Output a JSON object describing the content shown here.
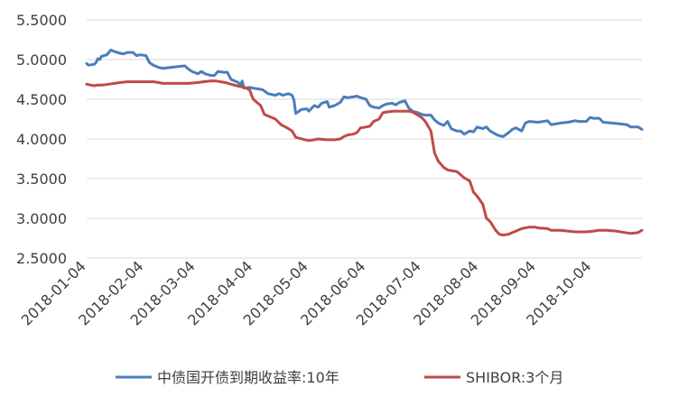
{
  "chart_data": {
    "type": "line",
    "title": "",
    "xlabel": "",
    "ylabel": "",
    "ylim": [
      2.5,
      5.5
    ],
    "ytick_labels": [
      "2.5000",
      "3.0000",
      "3.5000",
      "4.0000",
      "4.5000",
      "5.0000",
      "5.5000"
    ],
    "yticks": [
      2.5,
      3.0,
      3.5,
      4.0,
      4.5,
      5.0,
      5.5
    ],
    "xlim": [
      "2018-01-04",
      "2018-10-31"
    ],
    "x_ticks": [
      "2018-01-04",
      "2018-02-04",
      "2018-03-04",
      "2018-04-04",
      "2018-05-04",
      "2018-06-04",
      "2018-07-04",
      "2018-08-04",
      "2018-09-04",
      "2018-10-04"
    ],
    "grid": "horizontal",
    "legend_position": "bottom",
    "series": [
      {
        "name": "中债国开债到期收益率:10年",
        "color": "#4a7ebb",
        "points": [
          [
            "2018-01-04",
            4.95
          ],
          [
            "2018-01-05",
            4.93
          ],
          [
            "2018-01-08",
            4.94
          ],
          [
            "2018-01-09",
            4.96
          ],
          [
            "2018-01-10",
            5.01
          ],
          [
            "2018-01-11",
            5.0
          ],
          [
            "2018-01-12",
            5.04
          ],
          [
            "2018-01-15",
            5.06
          ],
          [
            "2018-01-17",
            5.12
          ],
          [
            "2018-01-19",
            5.1
          ],
          [
            "2018-01-22",
            5.08
          ],
          [
            "2018-01-24",
            5.07
          ],
          [
            "2018-01-26",
            5.09
          ],
          [
            "2018-01-29",
            5.09
          ],
          [
            "2018-01-31",
            5.05
          ],
          [
            "2018-02-02",
            5.06
          ],
          [
            "2018-02-05",
            5.05
          ],
          [
            "2018-02-07",
            4.96
          ],
          [
            "2018-02-09",
            4.93
          ],
          [
            "2018-02-12",
            4.9
          ],
          [
            "2018-02-14",
            4.89
          ],
          [
            "2018-02-22",
            4.91
          ],
          [
            "2018-02-26",
            4.92
          ],
          [
            "2018-02-28",
            4.88
          ],
          [
            "2018-03-02",
            4.85
          ],
          [
            "2018-03-05",
            4.82
          ],
          [
            "2018-03-07",
            4.85
          ],
          [
            "2018-03-09",
            4.82
          ],
          [
            "2018-03-12",
            4.8
          ],
          [
            "2018-03-14",
            4.8
          ],
          [
            "2018-03-16",
            4.85
          ],
          [
            "2018-03-19",
            4.84
          ],
          [
            "2018-03-21",
            4.84
          ],
          [
            "2018-03-23",
            4.75
          ],
          [
            "2018-03-26",
            4.72
          ],
          [
            "2018-03-27",
            4.71
          ],
          [
            "2018-03-28",
            4.66
          ],
          [
            "2018-03-29",
            4.73
          ],
          [
            "2018-03-30",
            4.64
          ],
          [
            "2018-04-02",
            4.65
          ],
          [
            "2018-04-04",
            4.64
          ],
          [
            "2018-04-09",
            4.62
          ],
          [
            "2018-04-12",
            4.57
          ],
          [
            "2018-04-16",
            4.55
          ],
          [
            "2018-04-18",
            4.57
          ],
          [
            "2018-04-20",
            4.55
          ],
          [
            "2018-04-23",
            4.57
          ],
          [
            "2018-04-25",
            4.55
          ],
          [
            "2018-04-26",
            4.49
          ],
          [
            "2018-04-27",
            4.32
          ],
          [
            "2018-04-30",
            4.37
          ],
          [
            "2018-05-03",
            4.38
          ],
          [
            "2018-05-04",
            4.35
          ],
          [
            "2018-05-07",
            4.42
          ],
          [
            "2018-05-09",
            4.4
          ],
          [
            "2018-05-11",
            4.45
          ],
          [
            "2018-05-14",
            4.47
          ],
          [
            "2018-05-15",
            4.4
          ],
          [
            "2018-05-18",
            4.42
          ],
          [
            "2018-05-21",
            4.46
          ],
          [
            "2018-05-23",
            4.53
          ],
          [
            "2018-05-25",
            4.52
          ],
          [
            "2018-05-28",
            4.53
          ],
          [
            "2018-05-30",
            4.54
          ],
          [
            "2018-06-01",
            4.52
          ],
          [
            "2018-06-04",
            4.5
          ],
          [
            "2018-06-06",
            4.42
          ],
          [
            "2018-06-08",
            4.4
          ],
          [
            "2018-06-11",
            4.39
          ],
          [
            "2018-06-13",
            4.42
          ],
          [
            "2018-06-15",
            4.44
          ],
          [
            "2018-06-18",
            4.45
          ],
          [
            "2018-06-20",
            4.43
          ],
          [
            "2018-06-22",
            4.46
          ],
          [
            "2018-06-25",
            4.48
          ],
          [
            "2018-06-27",
            4.39
          ],
          [
            "2018-06-29",
            4.35
          ],
          [
            "2018-07-02",
            4.33
          ],
          [
            "2018-07-04",
            4.31
          ],
          [
            "2018-07-06",
            4.3
          ],
          [
            "2018-07-09",
            4.3
          ],
          [
            "2018-07-11",
            4.24
          ],
          [
            "2018-07-13",
            4.2
          ],
          [
            "2018-07-16",
            4.17
          ],
          [
            "2018-07-18",
            4.22
          ],
          [
            "2018-07-20",
            4.13
          ],
          [
            "2018-07-23",
            4.1
          ],
          [
            "2018-07-25",
            4.1
          ],
          [
            "2018-07-27",
            4.06
          ],
          [
            "2018-07-30",
            4.1
          ],
          [
            "2018-08-01",
            4.09
          ],
          [
            "2018-08-03",
            4.15
          ],
          [
            "2018-08-06",
            4.13
          ],
          [
            "2018-08-08",
            4.15
          ],
          [
            "2018-08-10",
            4.1
          ],
          [
            "2018-08-13",
            4.06
          ],
          [
            "2018-08-15",
            4.04
          ],
          [
            "2018-08-17",
            4.03
          ],
          [
            "2018-08-20",
            4.08
          ],
          [
            "2018-08-22",
            4.12
          ],
          [
            "2018-08-24",
            4.14
          ],
          [
            "2018-08-27",
            4.1
          ],
          [
            "2018-08-29",
            4.2
          ],
          [
            "2018-08-31",
            4.22
          ],
          [
            "2018-09-05",
            4.21
          ],
          [
            "2018-09-10",
            4.23
          ],
          [
            "2018-09-12",
            4.18
          ],
          [
            "2018-09-17",
            4.2
          ],
          [
            "2018-09-21",
            4.21
          ],
          [
            "2018-09-25",
            4.23
          ],
          [
            "2018-09-27",
            4.22
          ],
          [
            "2018-10-01",
            4.22
          ],
          [
            "2018-10-03",
            4.27
          ],
          [
            "2018-10-05",
            4.26
          ],
          [
            "2018-10-08",
            4.26
          ],
          [
            "2018-10-10",
            4.21
          ],
          [
            "2018-10-15",
            4.2
          ],
          [
            "2018-10-19",
            4.19
          ],
          [
            "2018-10-23",
            4.18
          ],
          [
            "2018-10-25",
            4.15
          ],
          [
            "2018-10-29",
            4.15
          ],
          [
            "2018-10-31",
            4.12
          ]
        ]
      },
      {
        "name": "SHIBOR:3个月",
        "color": "#be4b48",
        "points": [
          [
            "2018-01-04",
            4.69
          ],
          [
            "2018-01-06",
            4.68
          ],
          [
            "2018-01-08",
            4.67
          ],
          [
            "2018-01-10",
            4.68
          ],
          [
            "2018-01-13",
            4.68
          ],
          [
            "2018-01-16",
            4.69
          ],
          [
            "2018-01-19",
            4.7
          ],
          [
            "2018-01-22",
            4.71
          ],
          [
            "2018-01-26",
            4.72
          ],
          [
            "2018-02-02",
            4.72
          ],
          [
            "2018-02-09",
            4.72
          ],
          [
            "2018-02-12",
            4.71
          ],
          [
            "2018-02-14",
            4.7
          ],
          [
            "2018-02-22",
            4.7
          ],
          [
            "2018-02-28",
            4.7
          ],
          [
            "2018-03-05",
            4.71
          ],
          [
            "2018-03-08",
            4.72
          ],
          [
            "2018-03-12",
            4.73
          ],
          [
            "2018-03-15",
            4.73
          ],
          [
            "2018-03-20",
            4.71
          ],
          [
            "2018-03-23",
            4.69
          ],
          [
            "2018-03-26",
            4.67
          ],
          [
            "2018-03-28",
            4.66
          ],
          [
            "2018-03-30",
            4.65
          ],
          [
            "2018-04-02",
            4.62
          ],
          [
            "2018-04-04",
            4.5
          ],
          [
            "2018-04-08",
            4.42
          ],
          [
            "2018-04-10",
            4.31
          ],
          [
            "2018-04-13",
            4.28
          ],
          [
            "2018-04-16",
            4.25
          ],
          [
            "2018-04-19",
            4.18
          ],
          [
            "2018-04-23",
            4.13
          ],
          [
            "2018-04-25",
            4.1
          ],
          [
            "2018-04-27",
            4.02
          ],
          [
            "2018-05-02",
            3.99
          ],
          [
            "2018-05-04",
            3.98
          ],
          [
            "2018-05-07",
            3.99
          ],
          [
            "2018-05-09",
            4.0
          ],
          [
            "2018-05-14",
            3.99
          ],
          [
            "2018-05-18",
            3.99
          ],
          [
            "2018-05-21",
            4.0
          ],
          [
            "2018-05-23",
            4.03
          ],
          [
            "2018-05-25",
            4.05
          ],
          [
            "2018-05-28",
            4.06
          ],
          [
            "2018-05-30",
            4.08
          ],
          [
            "2018-06-01",
            4.14
          ],
          [
            "2018-06-04",
            4.15
          ],
          [
            "2018-06-06",
            4.16
          ],
          [
            "2018-06-08",
            4.22
          ],
          [
            "2018-06-11",
            4.25
          ],
          [
            "2018-06-13",
            4.33
          ],
          [
            "2018-06-15",
            4.34
          ],
          [
            "2018-06-19",
            4.35
          ],
          [
            "2018-06-22",
            4.35
          ],
          [
            "2018-06-27",
            4.35
          ],
          [
            "2018-06-29",
            4.34
          ],
          [
            "2018-07-02",
            4.3
          ],
          [
            "2018-07-04",
            4.27
          ],
          [
            "2018-07-06",
            4.22
          ],
          [
            "2018-07-09",
            4.1
          ],
          [
            "2018-07-11",
            3.82
          ],
          [
            "2018-07-13",
            3.72
          ],
          [
            "2018-07-16",
            3.64
          ],
          [
            "2018-07-18",
            3.61
          ],
          [
            "2018-07-20",
            3.6
          ],
          [
            "2018-07-23",
            3.59
          ],
          [
            "2018-07-25",
            3.55
          ],
          [
            "2018-07-27",
            3.51
          ],
          [
            "2018-07-30",
            3.47
          ],
          [
            "2018-08-01",
            3.33
          ],
          [
            "2018-08-03",
            3.28
          ],
          [
            "2018-08-06",
            3.18
          ],
          [
            "2018-08-08",
            3.0
          ],
          [
            "2018-08-10",
            2.96
          ],
          [
            "2018-08-13",
            2.85
          ],
          [
            "2018-08-15",
            2.8
          ],
          [
            "2018-08-17",
            2.79
          ],
          [
            "2018-08-20",
            2.8
          ],
          [
            "2018-08-22",
            2.82
          ],
          [
            "2018-08-24",
            2.84
          ],
          [
            "2018-08-27",
            2.87
          ],
          [
            "2018-08-29",
            2.88
          ],
          [
            "2018-08-31",
            2.89
          ],
          [
            "2018-09-03",
            2.89
          ],
          [
            "2018-09-05",
            2.88
          ],
          [
            "2018-09-10",
            2.87
          ],
          [
            "2018-09-12",
            2.85
          ],
          [
            "2018-09-17",
            2.85
          ],
          [
            "2018-09-21",
            2.84
          ],
          [
            "2018-09-25",
            2.83
          ],
          [
            "2018-09-28",
            2.83
          ],
          [
            "2018-10-01",
            2.83
          ],
          [
            "2018-10-05",
            2.84
          ],
          [
            "2018-10-08",
            2.85
          ],
          [
            "2018-10-12",
            2.85
          ],
          [
            "2018-10-17",
            2.84
          ],
          [
            "2018-10-22",
            2.82
          ],
          [
            "2018-10-25",
            2.81
          ],
          [
            "2018-10-29",
            2.82
          ],
          [
            "2018-10-31",
            2.85
          ]
        ]
      }
    ]
  }
}
